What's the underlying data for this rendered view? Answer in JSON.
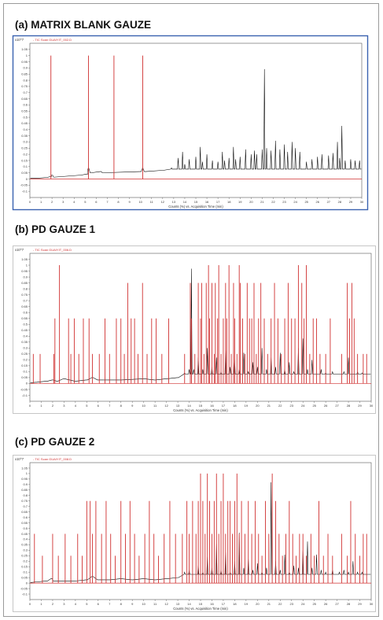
{
  "chart_data": [
    {
      "type": "line",
      "title": "(a) MATRIX BLANK GAUZE",
      "legend": "- TIC Scan GUAIYIT_002.D",
      "ylabel": "x10^7",
      "xlabel": "Counts (%) vs. Acquisition Time (min)",
      "xlim": [
        0,
        30
      ],
      "ylim": [
        -0.15,
        1.1
      ],
      "x_ticks": [
        "0",
        "1",
        "2",
        "3",
        "4",
        "5",
        "6",
        "7",
        "8",
        "9",
        "10",
        "11",
        "12",
        "13",
        "14",
        "15",
        "16",
        "17",
        "18",
        "19",
        "20",
        "21",
        "22",
        "23",
        "24",
        "25",
        "26",
        "27",
        "28",
        "29",
        "30"
      ],
      "y_ticks": [
        "-0.1",
        "-0.05",
        "0",
        "0.05",
        "0.1",
        "0.15",
        "0.2",
        "0.25",
        "0.3",
        "0.35",
        "0.4",
        "0.45",
        "0.5",
        "0.55",
        "0.6",
        "0.65",
        "0.7",
        "0.75",
        "0.8",
        "0.85",
        "0.9",
        "0.95",
        "1",
        "1.05"
      ],
      "series": [
        {
          "color": "#000000",
          "style": "tic",
          "x": [
            0.5,
            1.5,
            1.9,
            2.0,
            2.2,
            4.5,
            5.2,
            5.3,
            5.5,
            6.4,
            6.6,
            10.0,
            10.2,
            10.4,
            12.0,
            12.8,
            13.4,
            13.8,
            14.0,
            14.4,
            15.0,
            15.4,
            15.6,
            16.0,
            16.5,
            17.0,
            17.4,
            17.6,
            18.0,
            18.4,
            18.6,
            19.0,
            19.5,
            20.0,
            20.3,
            20.5,
            21.0,
            21.2,
            21.4,
            21.8,
            22.2,
            22.6,
            23.0,
            23.3,
            23.7,
            24.0,
            24.4,
            25.0,
            25.5,
            26.0,
            26.4,
            27.0,
            27.4,
            27.8,
            28.0,
            28.2,
            28.5,
            29.0,
            29.4,
            29.8
          ],
          "y": [
            0.005,
            0.012,
            0.02,
            0.03,
            0.015,
            0.03,
            0.04,
            0.09,
            0.05,
            0.06,
            0.05,
            0.06,
            0.09,
            0.06,
            0.07,
            0.09,
            0.17,
            0.22,
            0.12,
            0.16,
            0.18,
            0.26,
            0.14,
            0.2,
            0.15,
            0.14,
            0.22,
            0.15,
            0.17,
            0.26,
            0.16,
            0.18,
            0.24,
            0.2,
            0.23,
            0.2,
            0.24,
            0.89,
            0.25,
            0.23,
            0.31,
            0.24,
            0.28,
            0.22,
            0.3,
            0.25,
            0.22,
            0.14,
            0.16,
            0.18,
            0.2,
            0.19,
            0.21,
            0.3,
            0.17,
            0.43,
            0.15,
            0.16,
            0.15,
            0.15
          ]
        },
        {
          "color": "#d03030",
          "style": "bars",
          "x": [
            1.9,
            5.3,
            7.6,
            10.2
          ],
          "y": [
            1.0,
            1.0,
            1.0,
            1.0
          ]
        }
      ]
    },
    {
      "type": "line",
      "title": "(b) PD GAUZE 1",
      "legend": "- TIC Scan GUAIYIT_006.D",
      "ylabel": "x10^7",
      "xlabel": "Counts (%) vs. Acquisition Time (min)",
      "xlim": [
        0,
        30
      ],
      "ylim": [
        -0.15,
        1.1
      ],
      "x_ticks": [
        "0",
        "1",
        "2",
        "3",
        "4",
        "5",
        "6",
        "7",
        "8",
        "9",
        "10",
        "11",
        "12",
        "13",
        "14",
        "15",
        "16",
        "17",
        "18",
        "19",
        "20",
        "21",
        "22",
        "23",
        "24",
        "25",
        "26",
        "27",
        "28",
        "29",
        "30"
      ],
      "y_ticks": [
        "-0.1",
        "-0.05",
        "0",
        "0.05",
        "0.1",
        "0.15",
        "0.2",
        "0.25",
        "0.3",
        "0.35",
        "0.4",
        "0.45",
        "0.5",
        "0.55",
        "0.6",
        "0.65",
        "0.7",
        "0.75",
        "0.8",
        "0.85",
        "0.9",
        "0.95",
        "1",
        "1.05"
      ],
      "series": [
        {
          "color": "#000000",
          "style": "tic",
          "x": [
            0.5,
            1.5,
            2.0,
            2.4,
            3.0,
            4.0,
            5.0,
            5.5,
            6.0,
            8.0,
            10.0,
            11.0,
            12.0,
            13.0,
            13.6,
            14.0,
            14.2,
            14.4,
            14.8,
            15.2,
            15.6,
            16.0,
            16.4,
            16.8,
            17.2,
            17.6,
            18.0,
            18.4,
            18.8,
            19.2,
            19.6,
            20.0,
            20.4,
            20.8,
            21.2,
            21.6,
            22.0,
            22.4,
            22.8,
            23.2,
            23.6,
            24.0,
            24.4,
            24.8,
            25.2,
            25.6,
            26.0,
            26.6,
            27.2,
            27.6,
            28.0,
            28.4,
            28.8,
            29.2,
            29.6
          ],
          "y": [
            0.01,
            0.02,
            0.03,
            0.02,
            0.04,
            0.02,
            0.03,
            0.05,
            0.03,
            0.03,
            0.04,
            0.03,
            0.04,
            0.05,
            0.09,
            0.12,
            0.97,
            0.12,
            0.22,
            0.12,
            0.3,
            0.14,
            0.22,
            0.1,
            0.28,
            0.14,
            0.2,
            0.12,
            0.26,
            0.1,
            0.18,
            0.14,
            0.3,
            0.12,
            0.22,
            0.14,
            0.26,
            0.12,
            0.18,
            0.1,
            0.3,
            0.38,
            0.12,
            0.2,
            0.08,
            0.12,
            0.09,
            0.1,
            0.08,
            0.1,
            0.22,
            0.08,
            0.1,
            0.09,
            0.08
          ]
        },
        {
          "color": "#d03030",
          "style": "bars",
          "x": [
            0.3,
            0.9,
            2.1,
            2.2,
            2.6,
            3.4,
            3.6,
            3.9,
            4.3,
            4.7,
            5.2,
            5.5,
            6.1,
            6.6,
            7.0,
            7.6,
            8.0,
            8.3,
            8.6,
            8.9,
            9.2,
            9.5,
            9.9,
            10.3,
            10.7,
            11.1,
            11.6,
            12.2,
            13.6,
            14.1,
            14.2,
            14.5,
            14.8,
            15.0,
            15.1,
            15.3,
            15.5,
            15.7,
            15.8,
            16.0,
            16.2,
            16.3,
            16.5,
            16.6,
            16.8,
            17.0,
            17.2,
            17.3,
            17.5,
            17.7,
            17.9,
            18.0,
            18.2,
            18.4,
            18.5,
            18.7,
            18.9,
            19.1,
            19.3,
            19.5,
            19.7,
            19.9,
            20.1,
            20.3,
            20.6,
            20.9,
            21.2,
            21.5,
            21.8,
            22.1,
            22.4,
            22.7,
            23.0,
            23.3,
            23.6,
            23.9,
            24.1,
            24.3,
            24.6,
            24.9,
            25.2,
            25.5,
            26.0,
            26.4,
            27.4,
            27.9,
            28.1,
            28.3,
            28.5,
            28.8,
            29.3,
            29.6
          ],
          "y": [
            0.25,
            0.25,
            0.25,
            0.55,
            1.0,
            0.55,
            0.25,
            0.55,
            0.25,
            0.55,
            0.55,
            0.25,
            0.25,
            0.55,
            0.25,
            0.55,
            0.55,
            0.25,
            0.85,
            0.55,
            0.55,
            0.25,
            0.85,
            0.25,
            0.55,
            0.55,
            0.25,
            0.55,
            0.25,
            0.85,
            0.55,
            0.25,
            0.85,
            0.55,
            0.85,
            0.25,
            0.85,
            1.0,
            0.55,
            0.85,
            0.25,
            0.85,
            0.55,
            1.0,
            0.25,
            0.55,
            0.85,
            0.55,
            1.0,
            0.25,
            0.85,
            0.55,
            0.25,
            1.0,
            0.85,
            0.55,
            0.25,
            0.85,
            0.55,
            0.55,
            0.85,
            0.25,
            0.55,
            0.85,
            0.55,
            0.25,
            0.55,
            0.85,
            0.55,
            0.25,
            0.55,
            0.85,
            0.55,
            0.55,
            1.0,
            0.85,
            0.55,
            1.0,
            0.25,
            0.55,
            0.55,
            0.25,
            0.25,
            0.55,
            0.25,
            0.85,
            0.55,
            0.85,
            0.55,
            0.25,
            0.25,
            0.25
          ]
        }
      ]
    },
    {
      "type": "line",
      "title": "(c) PD GAUZE 2",
      "legend": "- TIC Scan GUAIYIT_008.D",
      "ylabel": "x10^7",
      "xlabel": "Counts (%) vs. Acquisition Time (min)",
      "xlim": [
        0,
        30
      ],
      "ylim": [
        -0.15,
        1.1
      ],
      "x_ticks": [
        "0",
        "1",
        "2",
        "3",
        "4",
        "5",
        "6",
        "7",
        "8",
        "9",
        "10",
        "11",
        "12",
        "13",
        "14",
        "15",
        "16",
        "17",
        "18",
        "19",
        "20",
        "21",
        "22",
        "23",
        "24",
        "25",
        "26",
        "27",
        "28",
        "29",
        "30"
      ],
      "y_ticks": [
        "-0.1",
        "-0.05",
        "0",
        "0.05",
        "0.1",
        "0.15",
        "0.2",
        "0.25",
        "0.3",
        "0.35",
        "0.4",
        "0.45",
        "0.5",
        "0.55",
        "0.6",
        "0.65",
        "0.7",
        "0.75",
        "0.8",
        "0.85",
        "0.9",
        "0.95",
        "1",
        "1.05"
      ],
      "series": [
        {
          "color": "#000000",
          "style": "tic",
          "x": [
            0.5,
            1.5,
            1.9,
            2.1,
            3.0,
            4.0,
            5.0,
            5.5,
            6.0,
            7.0,
            8.0,
            9.0,
            10.0,
            11.0,
            12.0,
            13.0,
            13.6,
            14.0,
            14.4,
            14.8,
            15.2,
            15.6,
            16.0,
            16.4,
            16.8,
            17.2,
            17.6,
            18.0,
            18.4,
            18.8,
            19.2,
            19.6,
            20.0,
            20.4,
            20.8,
            21.2,
            21.6,
            22.0,
            22.4,
            22.8,
            23.2,
            23.6,
            24.0,
            24.4,
            24.8,
            25.2,
            25.6,
            26.0,
            26.6,
            27.2,
            27.6,
            28.0,
            28.4,
            28.8,
            29.2,
            29.6
          ],
          "y": [
            0.01,
            0.02,
            0.04,
            0.02,
            0.02,
            0.02,
            0.03,
            0.06,
            0.03,
            0.03,
            0.04,
            0.03,
            0.04,
            0.03,
            0.04,
            0.05,
            0.1,
            0.12,
            0.08,
            0.16,
            0.1,
            0.24,
            0.14,
            0.36,
            0.12,
            0.28,
            0.1,
            0.2,
            0.46,
            0.14,
            0.22,
            0.12,
            0.18,
            0.1,
            0.14,
            0.92,
            0.2,
            0.12,
            0.26,
            0.1,
            0.16,
            0.14,
            0.3,
            0.38,
            0.14,
            0.26,
            0.12,
            0.1,
            0.12,
            0.1,
            0.12,
            0.1,
            0.2,
            0.1,
            0.1,
            0.08
          ]
        },
        {
          "color": "#d03030",
          "style": "bars",
          "x": [
            0.4,
            1.1,
            2.0,
            2.5,
            3.1,
            3.6,
            4.2,
            4.6,
            5.0,
            5.3,
            5.5,
            5.8,
            6.3,
            6.7,
            7.1,
            7.5,
            8.0,
            8.4,
            8.8,
            9.2,
            9.6,
            10.1,
            10.5,
            10.9,
            11.3,
            11.8,
            12.3,
            12.8,
            13.4,
            13.8,
            14.0,
            14.3,
            14.6,
            14.8,
            15.0,
            15.2,
            15.4,
            15.6,
            15.8,
            16.0,
            16.2,
            16.4,
            16.6,
            16.8,
            17.0,
            17.2,
            17.4,
            17.6,
            17.8,
            18.0,
            18.2,
            18.4,
            18.6,
            18.9,
            19.2,
            19.5,
            19.8,
            20.1,
            20.4,
            20.7,
            21.0,
            21.3,
            21.6,
            21.9,
            22.2,
            22.5,
            22.8,
            23.1,
            23.4,
            23.7,
            24.0,
            24.3,
            24.7,
            25.0,
            25.4,
            25.8,
            26.2,
            26.6,
            27.4,
            27.9,
            28.2,
            28.6,
            29.0,
            29.3,
            29.6
          ],
          "y": [
            0.45,
            0.25,
            0.45,
            0.25,
            0.45,
            0.25,
            0.45,
            0.25,
            0.75,
            0.75,
            0.45,
            0.75,
            0.45,
            0.75,
            0.45,
            0.25,
            0.75,
            0.45,
            0.75,
            0.45,
            0.25,
            0.45,
            0.75,
            0.45,
            0.25,
            0.45,
            0.75,
            0.45,
            0.45,
            0.75,
            0.45,
            0.75,
            0.45,
            0.75,
            1.0,
            0.75,
            0.45,
            1.0,
            0.75,
            0.45,
            0.75,
            1.0,
            0.45,
            0.75,
            1.0,
            0.45,
            0.75,
            0.75,
            0.45,
            0.75,
            1.0,
            0.45,
            0.75,
            0.45,
            0.75,
            0.45,
            0.75,
            0.45,
            0.25,
            0.75,
            0.45,
            1.0,
            0.75,
            0.45,
            0.25,
            0.45,
            0.75,
            0.45,
            0.25,
            0.45,
            0.45,
            0.25,
            0.45,
            0.25,
            0.75,
            0.25,
            0.45,
            0.25,
            0.45,
            0.25,
            0.75,
            0.45,
            0.25,
            0.45,
            0.45
          ]
        }
      ]
    }
  ]
}
